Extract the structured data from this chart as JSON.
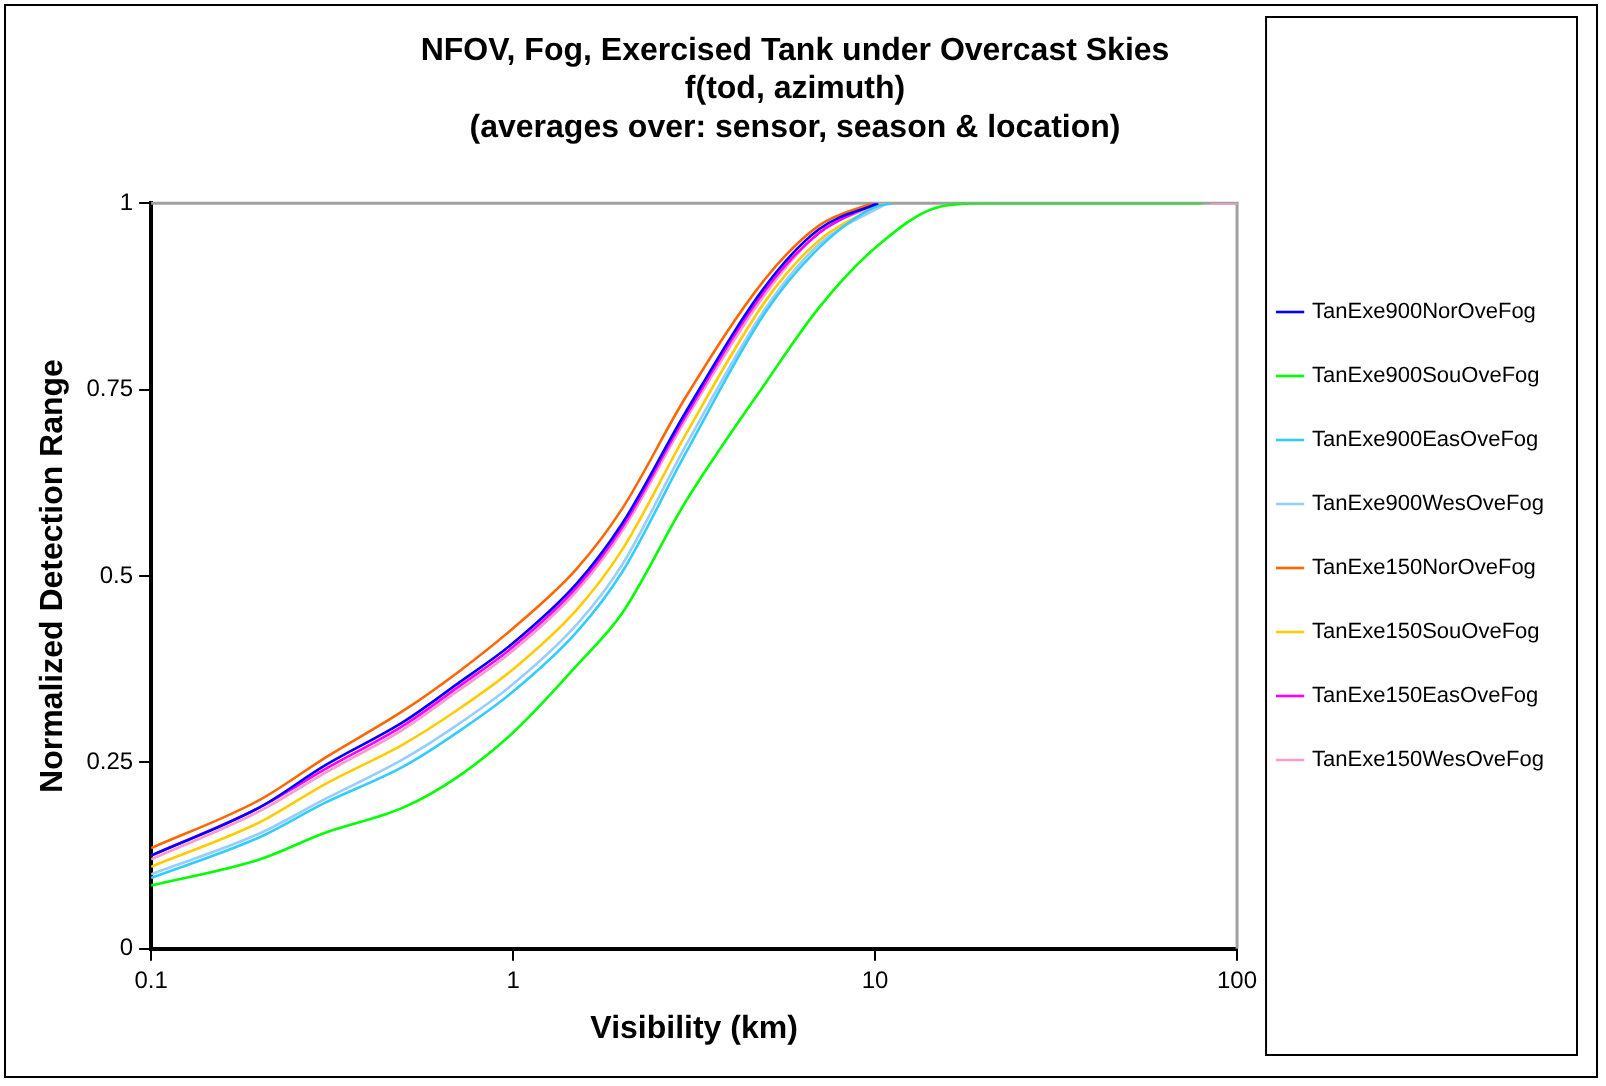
{
  "chart_data": {
    "type": "line",
    "title": "NFOV, Fog, Exercised Tank under Overcast Skies",
    "subtitle": [
      "f(tod, azimuth)",
      "(averages over: sensor, season & location)"
    ],
    "xlabel": "Visibility (km)",
    "ylabel": "Normalized Detection Range",
    "log": "x",
    "xlim": [
      0.1,
      100
    ],
    "xticks": [
      0.1,
      1,
      10,
      100
    ],
    "ylim": [
      0,
      1
    ],
    "yticks": [
      0,
      0.25,
      0.5,
      0.75,
      1
    ],
    "grid": false,
    "legend": "right",
    "marker": "none",
    "line_style": "solid",
    "series": [
      {
        "name": "TanExe900NorOveFog",
        "color": "#0000ff",
        "x": [
          0.1,
          0.2,
          0.3,
          0.5,
          0.7,
          1,
          1.5,
          2,
          3,
          5,
          7,
          10.2
        ],
        "values": [
          0.125,
          0.19,
          0.245,
          0.305,
          0.355,
          0.41,
          0.49,
          0.57,
          0.72,
          0.89,
          0.965,
          1
        ]
      },
      {
        "name": "TanExe900SouOveFog",
        "color": "#00ff00",
        "x": [
          0.1,
          0.2,
          0.3,
          0.5,
          0.7,
          1,
          1.5,
          2,
          3,
          5,
          7,
          10,
          15,
          20,
          80
        ],
        "values": [
          0.085,
          0.12,
          0.155,
          0.19,
          0.23,
          0.29,
          0.38,
          0.45,
          0.6,
          0.76,
          0.86,
          0.94,
          0.995,
          1,
          1
        ]
      },
      {
        "name": "TanExe900EasOveFog",
        "color": "#33ccff",
        "x": [
          0.1,
          0.2,
          0.3,
          0.5,
          0.7,
          1,
          1.5,
          2,
          3,
          5,
          7,
          10,
          11.2
        ],
        "values": [
          0.095,
          0.15,
          0.195,
          0.245,
          0.29,
          0.345,
          0.425,
          0.505,
          0.665,
          0.855,
          0.94,
          0.995,
          1
        ]
      },
      {
        "name": "TanExe900WesOveFog",
        "color": "#99ccff",
        "x": [
          0.1,
          0.2,
          0.3,
          0.5,
          0.7,
          1,
          1.5,
          2,
          3,
          5,
          7,
          10.8
        ],
        "values": [
          0.1,
          0.155,
          0.2,
          0.255,
          0.3,
          0.355,
          0.435,
          0.515,
          0.675,
          0.86,
          0.945,
          1
        ]
      },
      {
        "name": "TanExe150NorOveFog",
        "color": "#ff6600",
        "x": [
          0.1,
          0.2,
          0.3,
          0.5,
          0.7,
          1,
          1.5,
          2,
          3,
          5,
          7,
          9.8
        ],
        "values": [
          0.135,
          0.2,
          0.255,
          0.32,
          0.37,
          0.43,
          0.51,
          0.59,
          0.74,
          0.9,
          0.97,
          1
        ]
      },
      {
        "name": "TanExe150SouOveFog",
        "color": "#ffcc00",
        "x": [
          0.1,
          0.2,
          0.3,
          0.5,
          0.7,
          1,
          1.5,
          2,
          3,
          5,
          7,
          10.6
        ],
        "values": [
          0.11,
          0.17,
          0.22,
          0.275,
          0.32,
          0.375,
          0.455,
          0.535,
          0.69,
          0.87,
          0.95,
          1
        ]
      },
      {
        "name": "TanExe150EasOveFog",
        "color": "#ff00ff",
        "x": [
          0.1,
          0.2,
          0.3,
          0.5,
          0.7,
          1,
          1.5,
          2,
          3,
          5,
          7,
          10
        ],
        "values": [
          0.125,
          0.19,
          0.24,
          0.3,
          0.35,
          0.405,
          0.485,
          0.565,
          0.715,
          0.885,
          0.96,
          1
        ]
      },
      {
        "name": "TanExe150WesOveFog",
        "color": "#ff99cc",
        "x": [
          0.1,
          0.2,
          0.3,
          0.5,
          0.7,
          1,
          1.5,
          2,
          3,
          5,
          7,
          10.4,
          50,
          85,
          100
        ],
        "values": [
          0.12,
          0.185,
          0.235,
          0.295,
          0.345,
          0.4,
          0.48,
          0.56,
          0.71,
          0.88,
          0.96,
          1,
          null,
          1,
          1
        ]
      }
    ]
  }
}
